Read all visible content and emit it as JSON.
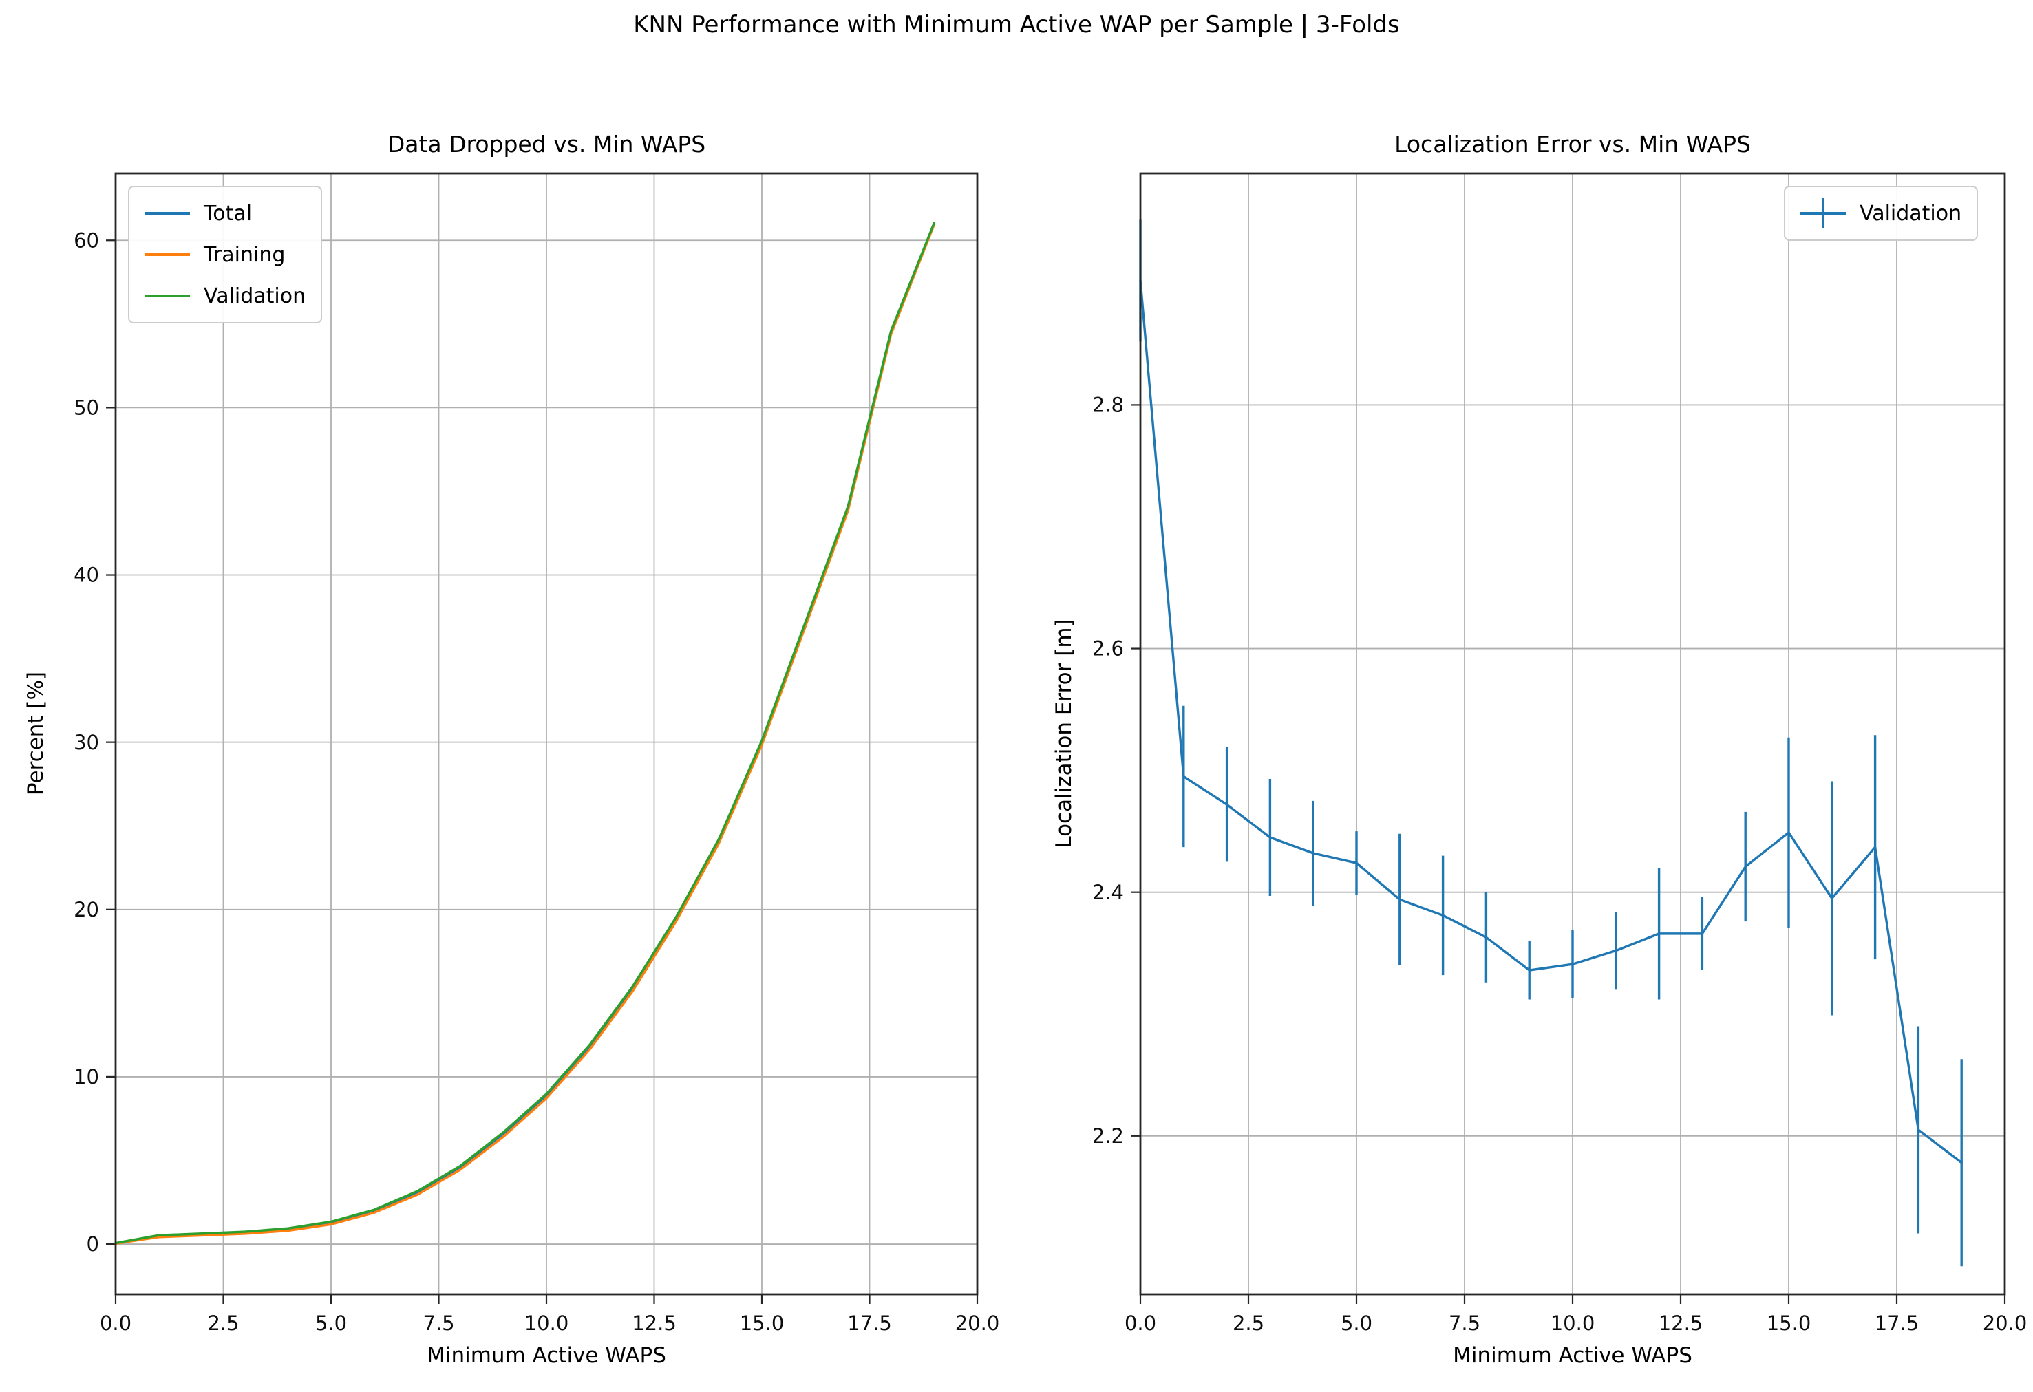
{
  "suptitle": "KNN Performance with Minimum Active WAP per Sample | 3-Folds",
  "chart_data": [
    {
      "id": "data-dropped",
      "type": "line",
      "title": "Data Dropped vs. Min WAPS",
      "xlabel": "Minimum Active WAPS",
      "ylabel": "Percent [%]",
      "xlim": [
        0,
        20
      ],
      "ylim": [
        -3,
        64
      ],
      "grid": true,
      "legend_position": "top-left",
      "xticks": [
        0,
        2.5,
        5,
        7.5,
        10,
        12.5,
        15,
        17.5,
        20
      ],
      "xtick_labels": [
        "0.0",
        "2.5",
        "5.0",
        "7.5",
        "10.0",
        "12.5",
        "15.0",
        "17.5",
        "20.0"
      ],
      "yticks": [
        0,
        10,
        20,
        30,
        40,
        50,
        60
      ],
      "ytick_labels": [
        "0",
        "10",
        "20",
        "30",
        "40",
        "50",
        "60"
      ],
      "x": [
        0,
        1,
        2,
        3,
        4,
        5,
        6,
        7,
        8,
        9,
        10,
        11,
        12,
        13,
        14,
        15,
        16,
        17,
        18,
        19
      ],
      "series": [
        {
          "name": "Total",
          "color": "#1f77b4",
          "values": [
            0.05,
            0.5,
            0.6,
            0.7,
            0.9,
            1.3,
            2.0,
            3.1,
            4.6,
            6.6,
            8.9,
            11.8,
            15.3,
            19.4,
            24.1,
            30.0,
            37.0,
            44.0,
            54.5,
            61.0
          ]
        },
        {
          "name": "Training",
          "color": "#ff7f0e",
          "values": [
            0.03,
            0.42,
            0.52,
            0.62,
            0.8,
            1.18,
            1.88,
            2.95,
            4.45,
            6.42,
            8.72,
            11.62,
            15.12,
            19.25,
            23.95,
            29.85,
            36.85,
            43.85,
            54.4,
            60.95
          ]
        },
        {
          "name": "Validation",
          "color": "#2ca02c",
          "values": [
            0.06,
            0.53,
            0.63,
            0.74,
            0.94,
            1.34,
            2.05,
            3.16,
            4.67,
            6.68,
            8.98,
            11.9,
            15.4,
            19.5,
            24.2,
            30.1,
            37.1,
            44.1,
            54.6,
            61.05
          ]
        }
      ]
    },
    {
      "id": "localization-error",
      "type": "errorbar-line",
      "title": "Localization Error vs. Min WAPS",
      "xlabel": "Minimum Active WAPS",
      "ylabel": "Localization Error [m]",
      "xlim": [
        0,
        20
      ],
      "ylim": [
        2.07,
        2.99
      ],
      "grid": true,
      "legend_position": "top-right",
      "xticks": [
        0,
        2.5,
        5,
        7.5,
        10,
        12.5,
        15,
        17.5,
        20
      ],
      "xtick_labels": [
        "0.0",
        "2.5",
        "5.0",
        "7.5",
        "10.0",
        "12.5",
        "15.0",
        "17.5",
        "20.0"
      ],
      "yticks": [
        2.2,
        2.4,
        2.6,
        2.8
      ],
      "ytick_labels": [
        "2.2",
        "2.4",
        "2.6",
        "2.8"
      ],
      "x": [
        0,
        1,
        2,
        3,
        4,
        5,
        6,
        7,
        8,
        9,
        10,
        11,
        12,
        13,
        14,
        15,
        16,
        17,
        18,
        19
      ],
      "series": [
        {
          "name": "Validation",
          "color": "#1f77b4",
          "values": [
            2.902,
            2.495,
            2.472,
            2.445,
            2.432,
            2.424,
            2.394,
            2.381,
            2.363,
            2.336,
            2.341,
            2.352,
            2.366,
            2.366,
            2.421,
            2.449,
            2.395,
            2.437,
            2.205,
            2.178
          ],
          "errors": [
            0.05,
            0.058,
            0.047,
            0.048,
            0.043,
            0.026,
            0.054,
            0.049,
            0.037,
            0.024,
            0.028,
            0.032,
            0.054,
            0.03,
            0.045,
            0.078,
            0.096,
            0.092,
            0.085,
            0.085
          ]
        }
      ]
    }
  ],
  "colors": {
    "total": "#1f77b4",
    "training": "#ff7f0e",
    "validation": "#2ca02c",
    "grid": "#b0b0b0",
    "spine": "#262626"
  }
}
